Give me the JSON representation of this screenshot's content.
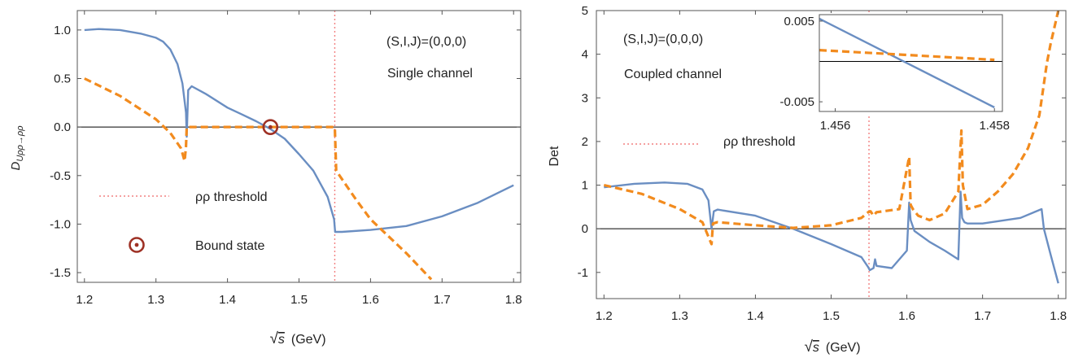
{
  "chart_data": [
    {
      "type": "line",
      "xlabel": "√s (GeV)",
      "ylabel": "D_{Uρρ→ρρ}",
      "xlim": [
        1.19,
        1.81
      ],
      "ylim": [
        -1.6,
        1.2
      ],
      "xticks": [
        1.2,
        1.3,
        1.4,
        1.5,
        1.6,
        1.7,
        1.8
      ],
      "xtick_labels": [
        "1.2",
        "1.3",
        "1.4",
        "1.5",
        "1.6",
        "1.7",
        "1.8"
      ],
      "yticks": [
        1.0,
        0.5,
        0.0,
        -0.5,
        -1.0,
        -1.5
      ],
      "ytick_labels": [
        "1.0",
        "0.5",
        "0.0",
        "-0.5",
        "-1.0",
        "-1.5"
      ],
      "threshold_x": 1.55,
      "annotations": [
        "(S,I,J)=(0,0,0)",
        "Single channel"
      ],
      "legend": {
        "threshold_label": "ρρ threshold",
        "bound_state_label": "Bound state"
      },
      "bound_state": {
        "x": 1.46,
        "y": 0.0
      },
      "series": [
        {
          "style": "solid",
          "color": "#6a8ec2",
          "x": [
            1.2,
            1.22,
            1.25,
            1.28,
            1.3,
            1.31,
            1.32,
            1.33,
            1.337,
            1.342,
            1.343,
            1.345,
            1.35,
            1.37,
            1.4,
            1.42,
            1.44,
            1.46,
            1.48,
            1.5,
            1.52,
            1.54,
            1.549,
            1.5505,
            1.56,
            1.6,
            1.65,
            1.7,
            1.75,
            1.8
          ],
          "y": [
            1.0,
            1.01,
            1.0,
            0.96,
            0.92,
            0.88,
            0.8,
            0.65,
            0.45,
            0.15,
            -0.1,
            0.38,
            0.42,
            0.34,
            0.2,
            0.13,
            0.06,
            -0.02,
            -0.12,
            -0.28,
            -0.45,
            -0.72,
            -0.95,
            -1.08,
            -1.08,
            -1.06,
            -1.02,
            -0.92,
            -0.78,
            -0.6
          ]
        },
        {
          "style": "dashed",
          "color": "#f28b1e",
          "x": [
            1.2,
            1.25,
            1.3,
            1.32,
            1.335,
            1.34,
            1.342,
            1.343,
            1.4,
            1.5,
            1.55,
            1.552,
            1.58,
            1.6,
            1.65,
            1.685
          ],
          "y": [
            0.5,
            0.32,
            0.08,
            -0.06,
            -0.22,
            -0.35,
            -0.2,
            0.0,
            0.0,
            0.0,
            0.0,
            -0.45,
            -0.75,
            -0.95,
            -1.3,
            -1.57
          ]
        }
      ]
    },
    {
      "type": "line",
      "xlabel": "√s (GeV)",
      "ylabel": "Det",
      "xlim": [
        1.19,
        1.81
      ],
      "ylim": [
        -1.6,
        5.0
      ],
      "xticks": [
        1.2,
        1.3,
        1.4,
        1.5,
        1.6,
        1.7,
        1.8
      ],
      "xtick_labels": [
        "1.2",
        "1.3",
        "1.4",
        "1.5",
        "1.6",
        "1.7",
        "1.8"
      ],
      "yticks": [
        5,
        4,
        3,
        2,
        1,
        0,
        -1
      ],
      "ytick_labels": [
        "5",
        "4",
        "3",
        "2",
        "1",
        "0",
        "-1"
      ],
      "threshold_x": 1.55,
      "annotations": [
        "(S,I,J)=(0,0,0)",
        "Coupled channel"
      ],
      "legend": {
        "threshold_label": "ρρ threshold"
      },
      "series": [
        {
          "style": "solid",
          "color": "#6a8ec2",
          "x": [
            1.2,
            1.24,
            1.28,
            1.31,
            1.33,
            1.338,
            1.342,
            1.345,
            1.35,
            1.4,
            1.45,
            1.5,
            1.54,
            1.549,
            1.551,
            1.556,
            1.558,
            1.56,
            1.58,
            1.6,
            1.603,
            1.605,
            1.608,
            1.61,
            1.63,
            1.65,
            1.668,
            1.671,
            1.673,
            1.676,
            1.68,
            1.7,
            1.75,
            1.778,
            1.781,
            1.79,
            1.8
          ],
          "y": [
            0.95,
            1.03,
            1.06,
            1.03,
            0.9,
            0.65,
            0.0,
            0.4,
            0.44,
            0.3,
            0.0,
            -0.35,
            -0.65,
            -0.88,
            -0.95,
            -0.9,
            -0.7,
            -0.85,
            -0.9,
            -0.5,
            0.6,
            0.2,
            0.05,
            -0.05,
            -0.3,
            -0.5,
            -0.7,
            0.85,
            0.25,
            0.15,
            0.12,
            0.12,
            0.25,
            0.45,
            0.0,
            -0.6,
            -1.25
          ]
        },
        {
          "style": "dashed",
          "color": "#f28b1e",
          "x": [
            1.2,
            1.25,
            1.3,
            1.33,
            1.342,
            1.344,
            1.35,
            1.4,
            1.45,
            1.5,
            1.54,
            1.549,
            1.552,
            1.556,
            1.56,
            1.59,
            1.603,
            1.605,
            1.608,
            1.615,
            1.63,
            1.65,
            1.668,
            1.672,
            1.674,
            1.68,
            1.7,
            1.72,
            1.74,
            1.76,
            1.775,
            1.785,
            1.79,
            1.8
          ],
          "y": [
            1.0,
            0.8,
            0.45,
            0.15,
            -0.35,
            0.12,
            0.15,
            0.08,
            0.02,
            0.08,
            0.25,
            0.38,
            0.4,
            0.3,
            0.38,
            0.45,
            1.65,
            0.55,
            0.45,
            0.3,
            0.2,
            0.35,
            0.85,
            2.25,
            1.0,
            0.45,
            0.55,
            0.85,
            1.25,
            1.85,
            2.6,
            3.8,
            4.25,
            5.0
          ]
        }
      ]
    },
    {
      "type": "line",
      "role": "inset",
      "xlim": [
        1.4558,
        1.4581
      ],
      "ylim": [
        -0.0062,
        0.0058
      ],
      "xticks": [
        1.456,
        1.458
      ],
      "xtick_labels": [
        "1.456",
        "1.458"
      ],
      "yticks": [
        0.005,
        -0.005
      ],
      "ytick_labels": [
        "0.005",
        "-0.005"
      ],
      "series": [
        {
          "style": "solid",
          "color": "#6a8ec2",
          "x": [
            1.4558,
            1.458
          ],
          "y": [
            0.0053,
            -0.0057
          ]
        },
        {
          "style": "dashed",
          "color": "#f28b1e",
          "x": [
            1.4558,
            1.458
          ],
          "y": [
            0.0014,
            0.0002
          ]
        }
      ]
    }
  ]
}
